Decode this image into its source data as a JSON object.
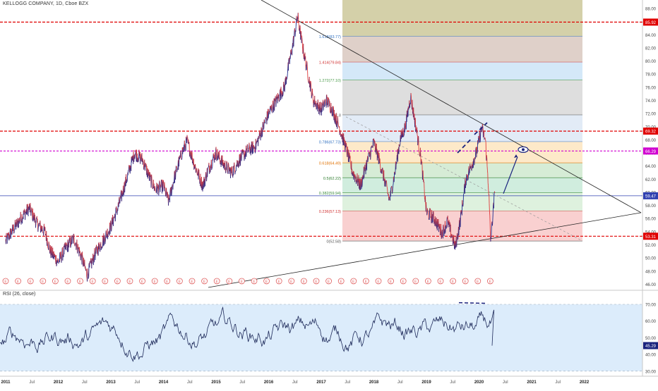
{
  "header": {
    "title": "KELLOGG COMPANY, 1D, Cboe BZX"
  },
  "rsi_panel": {
    "title": "RSI (26, close)",
    "last_value": "45.29"
  },
  "colors": {
    "price_up": "#1e2a8c",
    "price_down": "#e03a3a",
    "rsi_line": "#1e2a5a",
    "rsi_band": "#dcecfb",
    "red_dash": "#e00000",
    "magenta_dash": "#d000d0",
    "blue_line": "#3040b0",
    "trend_line": "#222222"
  },
  "chart_data": [
    {
      "type": "line",
      "name": "price",
      "title": "KELLOGG COMPANY, 1D, Cboe BZX",
      "x_tick_labels": [
        "2011",
        "Jul",
        "2012",
        "Jul",
        "2013",
        "Jul",
        "2014",
        "Jul",
        "2015",
        "Jul",
        "2016",
        "Jul",
        "2017",
        "Jul",
        "2018",
        "Jul",
        "2019",
        "Jul",
        "2020",
        "Jul",
        "2021",
        "Jul",
        "2022"
      ],
      "y_ticks": [
        46,
        48,
        50,
        52,
        54,
        56,
        58,
        60,
        62,
        64,
        66,
        68,
        70,
        72,
        74,
        76,
        78,
        80,
        82,
        84,
        86,
        88
      ],
      "ylim": [
        44.5,
        88.8
      ],
      "approx_close_series": [
        {
          "t": 2011.0,
          "y": 52.5
        },
        {
          "t": 2011.1,
          "y": 53.8
        },
        {
          "t": 2011.3,
          "y": 56.2
        },
        {
          "t": 2011.45,
          "y": 57.6
        },
        {
          "t": 2011.6,
          "y": 55.2
        },
        {
          "t": 2011.75,
          "y": 54.0
        },
        {
          "t": 2011.85,
          "y": 51.0
        },
        {
          "t": 2012.0,
          "y": 49.4
        },
        {
          "t": 2012.15,
          "y": 51.6
        },
        {
          "t": 2012.3,
          "y": 53.0
        },
        {
          "t": 2012.45,
          "y": 50.0
        },
        {
          "t": 2012.55,
          "y": 47.4
        },
        {
          "t": 2012.7,
          "y": 50.6
        },
        {
          "t": 2012.85,
          "y": 52.6
        },
        {
          "t": 2013.0,
          "y": 54.8
        },
        {
          "t": 2013.15,
          "y": 58.0
        },
        {
          "t": 2013.3,
          "y": 62.0
        },
        {
          "t": 2013.45,
          "y": 66.0
        },
        {
          "t": 2013.6,
          "y": 65.0
        },
        {
          "t": 2013.75,
          "y": 62.0
        },
        {
          "t": 2013.85,
          "y": 60.4
        },
        {
          "t": 2014.0,
          "y": 61.0
        },
        {
          "t": 2014.1,
          "y": 58.6
        },
        {
          "t": 2014.2,
          "y": 62.0
        },
        {
          "t": 2014.35,
          "y": 66.0
        },
        {
          "t": 2014.45,
          "y": 67.8
        },
        {
          "t": 2014.6,
          "y": 64.0
        },
        {
          "t": 2014.75,
          "y": 61.0
        },
        {
          "t": 2014.85,
          "y": 63.4
        },
        {
          "t": 2015.0,
          "y": 66.0
        },
        {
          "t": 2015.15,
          "y": 64.2
        },
        {
          "t": 2015.3,
          "y": 63.0
        },
        {
          "t": 2015.45,
          "y": 65.0
        },
        {
          "t": 2015.6,
          "y": 66.4
        },
        {
          "t": 2015.75,
          "y": 67.0
        },
        {
          "t": 2015.85,
          "y": 69.0
        },
        {
          "t": 2016.0,
          "y": 72.0
        },
        {
          "t": 2016.15,
          "y": 74.0
        },
        {
          "t": 2016.3,
          "y": 76.0
        },
        {
          "t": 2016.45,
          "y": 82.0
        },
        {
          "t": 2016.55,
          "y": 86.8
        },
        {
          "t": 2016.65,
          "y": 82.0
        },
        {
          "t": 2016.75,
          "y": 78.0
        },
        {
          "t": 2016.85,
          "y": 74.0
        },
        {
          "t": 2017.0,
          "y": 72.6
        },
        {
          "t": 2017.1,
          "y": 74.0
        },
        {
          "t": 2017.2,
          "y": 72.8
        },
        {
          "t": 2017.35,
          "y": 69.8
        },
        {
          "t": 2017.5,
          "y": 66.0
        },
        {
          "t": 2017.6,
          "y": 63.0
        },
        {
          "t": 2017.75,
          "y": 61.0
        },
        {
          "t": 2017.85,
          "y": 64.0
        },
        {
          "t": 2018.0,
          "y": 67.6
        },
        {
          "t": 2018.1,
          "y": 65.0
        },
        {
          "t": 2018.2,
          "y": 62.0
        },
        {
          "t": 2018.3,
          "y": 58.8
        },
        {
          "t": 2018.4,
          "y": 63.0
        },
        {
          "t": 2018.5,
          "y": 68.0
        },
        {
          "t": 2018.6,
          "y": 70.0
        },
        {
          "t": 2018.7,
          "y": 74.6
        },
        {
          "t": 2018.8,
          "y": 70.0
        },
        {
          "t": 2018.9,
          "y": 65.0
        },
        {
          "t": 2019.0,
          "y": 57.0
        },
        {
          "t": 2019.15,
          "y": 56.0
        },
        {
          "t": 2019.3,
          "y": 53.8
        },
        {
          "t": 2019.4,
          "y": 55.6
        },
        {
          "t": 2019.5,
          "y": 53.0
        },
        {
          "t": 2019.55,
          "y": 51.6
        },
        {
          "t": 2019.65,
          "y": 56.0
        },
        {
          "t": 2019.75,
          "y": 62.0
        },
        {
          "t": 2019.85,
          "y": 64.0
        },
        {
          "t": 2019.95,
          "y": 66.0
        },
        {
          "t": 2020.05,
          "y": 69.8
        },
        {
          "t": 2020.12,
          "y": 68.0
        },
        {
          "t": 2020.18,
          "y": 61.0
        },
        {
          "t": 2020.22,
          "y": 52.6
        },
        {
          "t": 2020.3,
          "y": 59.9
        }
      ],
      "horizontal_levels": {
        "red_dashed": [
          85.92,
          69.32,
          53.31
        ],
        "magenta_dashed": [
          66.29
        ],
        "blue_solid": [
          59.47
        ]
      },
      "fibonacci": [
        {
          "label": "0(52.58)",
          "value": 52.58
        },
        {
          "label": "0.236(57.13)",
          "value": 57.13
        },
        {
          "label": "0.382(59.94)",
          "value": 59.94
        },
        {
          "label": "0.5(62.22)",
          "value": 62.22
        },
        {
          "label": "0.618(64.49)",
          "value": 64.49
        },
        {
          "label": "0.786(67.73)",
          "value": 67.73
        },
        {
          "label": "(71.8",
          "value": 71.8
        },
        {
          "label": "1.272(77.10)",
          "value": 77.1
        },
        {
          "label": "1.414(79.84)",
          "value": 79.84
        },
        {
          "label": "1.618(83.77)",
          "value": 83.77
        }
      ],
      "price_axis_badges": [
        {
          "text": "85.92",
          "value": 85.92,
          "color": "#e00000"
        },
        {
          "text": "69.32",
          "value": 69.32,
          "color": "#e00000"
        },
        {
          "text": "66.29",
          "value": 66.29,
          "color": "#d000d0"
        },
        {
          "text": "59.47",
          "value": 59.47,
          "color": "#3040b0"
        },
        {
          "text": "53.31",
          "value": 53.31,
          "color": "#e00000"
        }
      ],
      "earnings_markers": {
        "label": "E",
        "count": 40
      },
      "legend": "none",
      "grid": false
    },
    {
      "type": "line",
      "name": "RSI (26, close)",
      "y_ticks": [
        30,
        40,
        50,
        60,
        70
      ],
      "ylim": [
        27,
        79
      ],
      "band": [
        30,
        70
      ],
      "last_value": 45.29
    }
  ]
}
